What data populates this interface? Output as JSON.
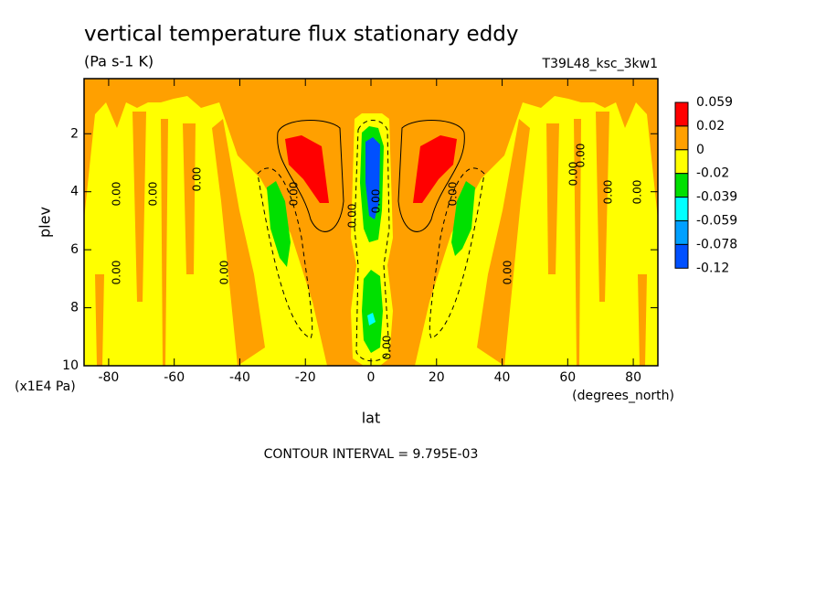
{
  "chart_data": {
    "type": "contour",
    "title": "vertical temperature flux stationary eddy",
    "subtitle": "(Pa s-1 K)",
    "dataset": "T39L48_ksc_3kw1",
    "x_label": "lat",
    "x_units": "(degrees_north)",
    "y_label": "plev",
    "y_units": "(x1E4 Pa)",
    "footnote": "CONTOUR INTERVAL = 9.795E-03",
    "contour_label": "0.00",
    "xlim": [
      -87.5,
      87.5
    ],
    "xticks": [
      -80,
      -60,
      -40,
      -20,
      0,
      20,
      40,
      60,
      80
    ],
    "ylim": [
      0.1,
      10
    ],
    "y_inverted": true,
    "yticks": [
      2,
      4,
      6,
      8,
      10
    ],
    "levels": [
      0.059,
      0.02,
      0,
      -0.02,
      -0.039,
      -0.059,
      -0.078,
      -0.12
    ],
    "colors": [
      "#ff0000",
      "#ffa000",
      "#ffff00",
      "#00e000",
      "#00ffff",
      "#00a0ff",
      "#0050ff"
    ]
  }
}
